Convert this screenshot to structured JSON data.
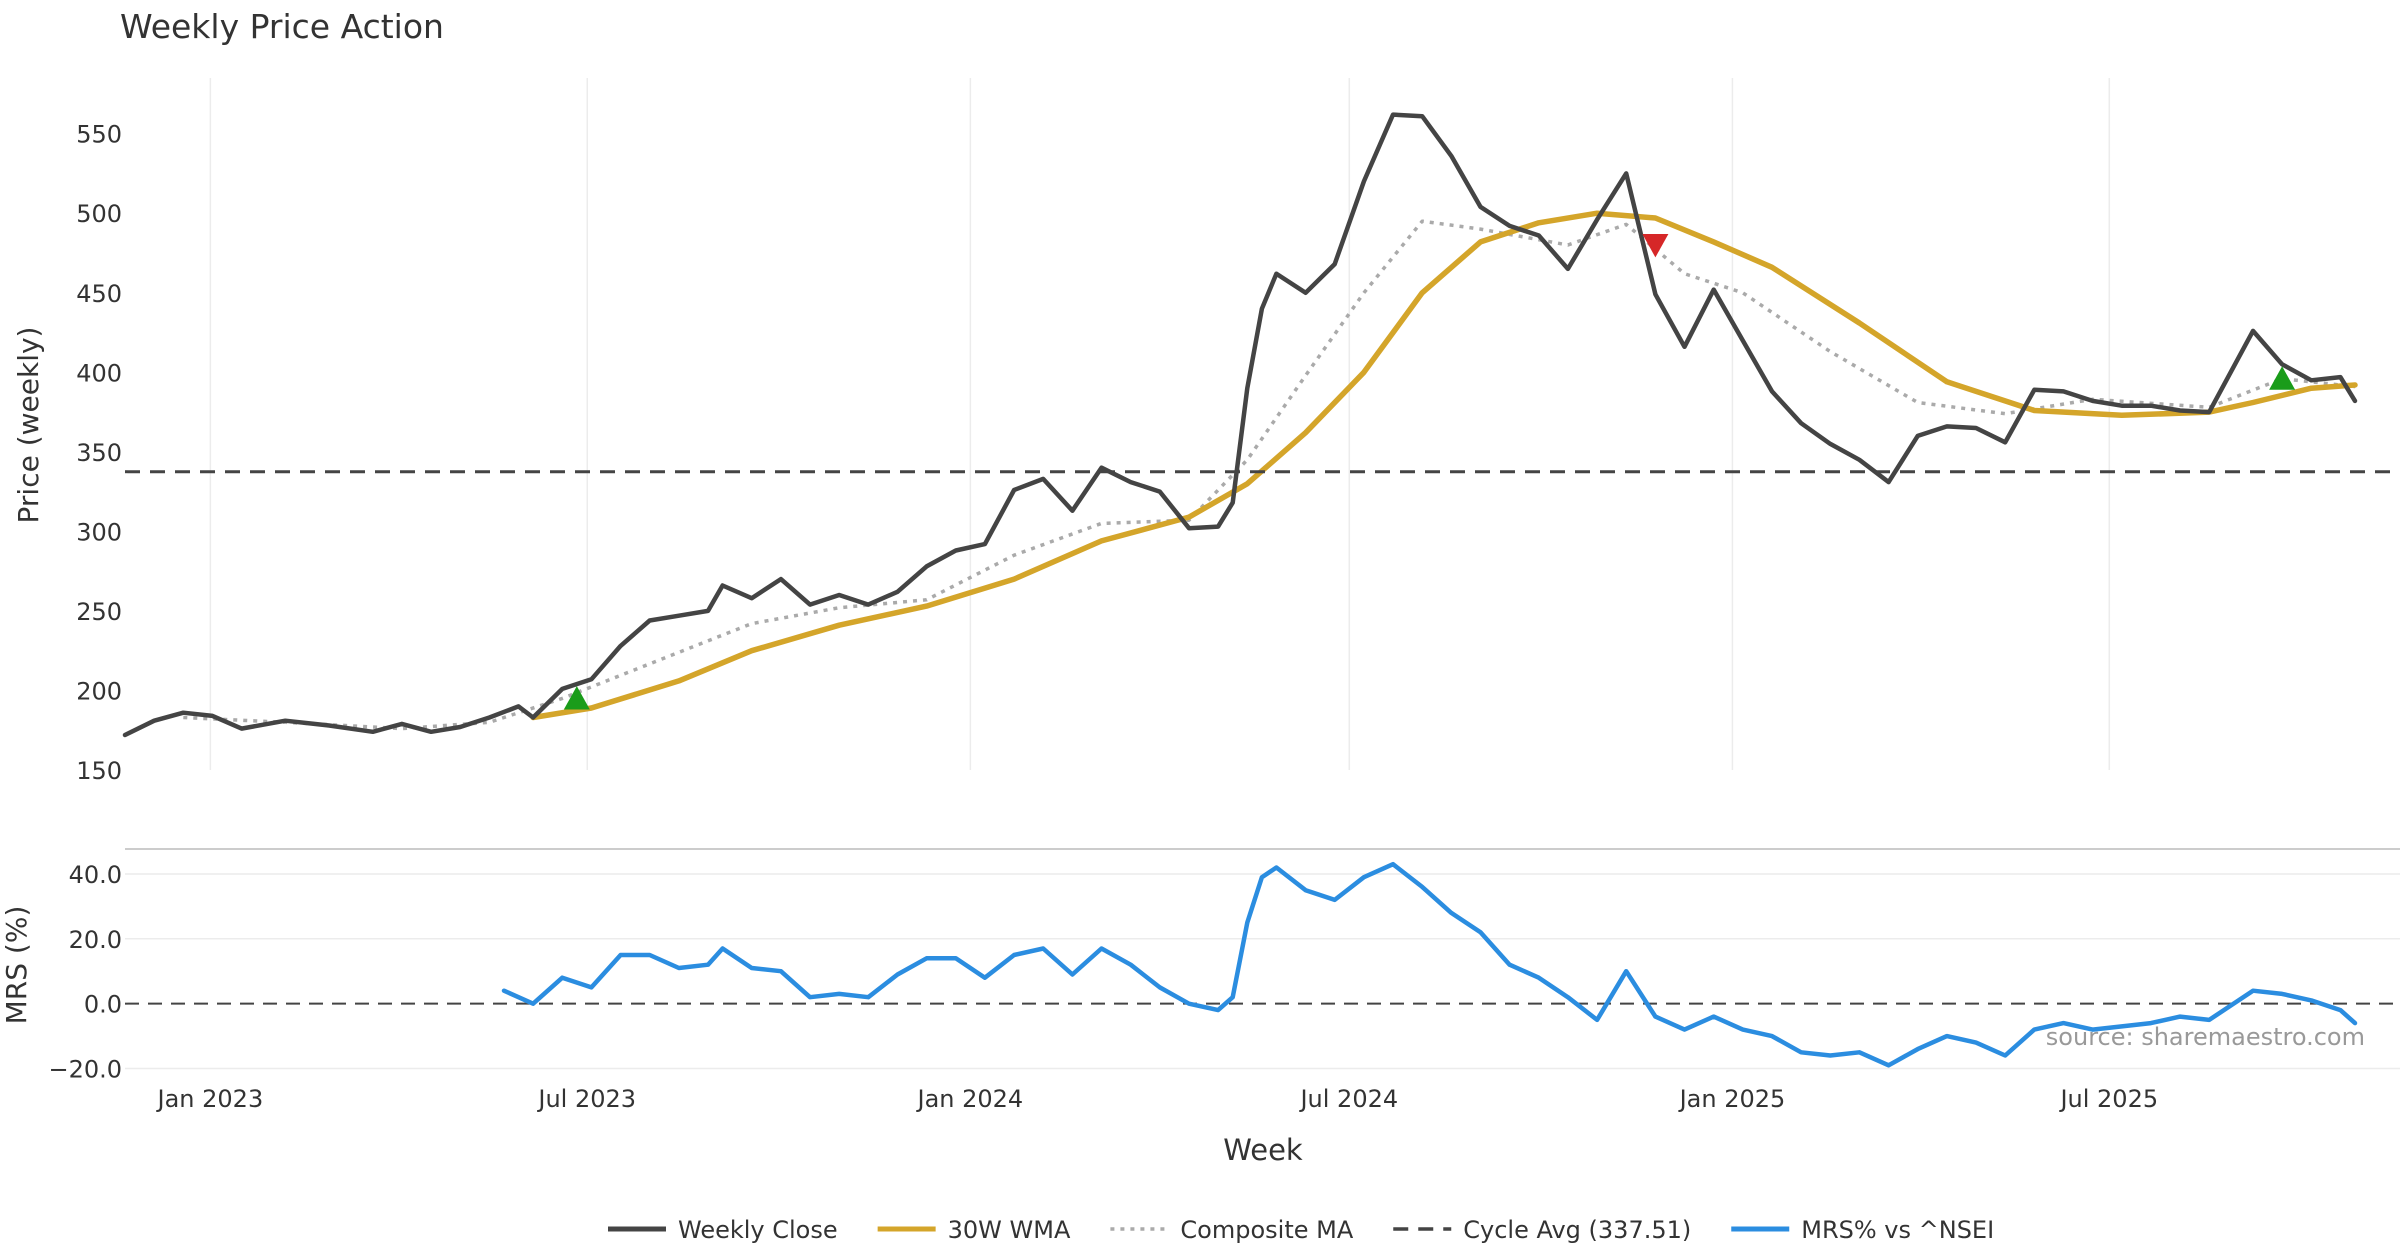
{
  "chart_data": {
    "type": "line",
    "title": "Weekly Price Action",
    "xlabel": "Week",
    "watermark": "source: sharemaestro.com",
    "x_range": [
      "2022-11-21",
      "2025-10-27"
    ],
    "x_ticks": [
      {
        "date": "2023-01-01",
        "label": "Jan 2023"
      },
      {
        "date": "2023-07-01",
        "label": "Jul 2023"
      },
      {
        "date": "2024-01-01",
        "label": "Jan 2024"
      },
      {
        "date": "2024-07-01",
        "label": "Jul 2024"
      },
      {
        "date": "2025-01-01",
        "label": "Jan 2025"
      },
      {
        "date": "2025-07-01",
        "label": "Jul 2025"
      }
    ],
    "price_panel": {
      "ylabel": "Price (weekly)",
      "ylim": [
        150,
        585
      ],
      "yticks": [
        150,
        200,
        250,
        300,
        350,
        400,
        450,
        500,
        550
      ],
      "cycle_avg": 337.51
    },
    "mrs_panel": {
      "ylabel": "MRS (%)",
      "ylim": [
        -22,
        48
      ],
      "yticks": [
        -20,
        0,
        20,
        40
      ],
      "ytick_labels": [
        "−20.0",
        "0.0",
        "20.0",
        "40.0"
      ]
    },
    "series": [
      {
        "name": "Weekly Close",
        "color": "#444444",
        "style": "solid",
        "panel": "price",
        "points": [
          [
            "2022-11-21",
            172
          ],
          [
            "2022-12-05",
            181
          ],
          [
            "2022-12-19",
            186
          ],
          [
            "2023-01-02",
            184
          ],
          [
            "2023-01-16",
            176
          ],
          [
            "2023-02-06",
            181
          ],
          [
            "2023-02-27",
            178
          ],
          [
            "2023-03-20",
            174
          ],
          [
            "2023-04-03",
            179
          ],
          [
            "2023-04-17",
            174
          ],
          [
            "2023-05-01",
            177
          ],
          [
            "2023-05-15",
            183
          ],
          [
            "2023-05-29",
            190
          ],
          [
            "2023-06-05",
            183
          ],
          [
            "2023-06-19",
            201
          ],
          [
            "2023-07-03",
            207
          ],
          [
            "2023-07-17",
            228
          ],
          [
            "2023-07-31",
            244
          ],
          [
            "2023-08-14",
            247
          ],
          [
            "2023-08-28",
            250
          ],
          [
            "2023-09-04",
            266
          ],
          [
            "2023-09-18",
            258
          ],
          [
            "2023-10-02",
            270
          ],
          [
            "2023-10-16",
            254
          ],
          [
            "2023-10-30",
            260
          ],
          [
            "2023-11-13",
            254
          ],
          [
            "2023-11-27",
            262
          ],
          [
            "2023-12-11",
            278
          ],
          [
            "2023-12-25",
            288
          ],
          [
            "2024-01-08",
            292
          ],
          [
            "2024-01-22",
            326
          ],
          [
            "2024-02-05",
            333
          ],
          [
            "2024-02-19",
            313
          ],
          [
            "2024-03-04",
            340
          ],
          [
            "2024-03-18",
            331
          ],
          [
            "2024-04-01",
            325
          ],
          [
            "2024-04-15",
            302
          ],
          [
            "2024-04-29",
            303
          ],
          [
            "2024-05-06",
            318
          ],
          [
            "2024-05-13",
            390
          ],
          [
            "2024-05-20",
            440
          ],
          [
            "2024-05-27",
            462
          ],
          [
            "2024-06-10",
            450
          ],
          [
            "2024-06-24",
            468
          ],
          [
            "2024-07-08",
            520
          ],
          [
            "2024-07-22",
            562
          ],
          [
            "2024-08-05",
            561
          ],
          [
            "2024-08-19",
            536
          ],
          [
            "2024-09-02",
            504
          ],
          [
            "2024-09-16",
            492
          ],
          [
            "2024-09-30",
            486
          ],
          [
            "2024-10-14",
            465
          ],
          [
            "2024-10-28",
            496
          ],
          [
            "2024-11-11",
            525
          ],
          [
            "2024-11-25",
            449
          ],
          [
            "2024-12-09",
            416
          ],
          [
            "2024-12-23",
            452
          ],
          [
            "2025-01-06",
            420
          ],
          [
            "2025-01-20",
            388
          ],
          [
            "2025-02-03",
            368
          ],
          [
            "2025-02-17",
            355
          ],
          [
            "2025-03-03",
            345
          ],
          [
            "2025-03-17",
            331
          ],
          [
            "2025-03-31",
            360
          ],
          [
            "2025-04-14",
            366
          ],
          [
            "2025-04-28",
            365
          ],
          [
            "2025-05-12",
            356
          ],
          [
            "2025-05-26",
            389
          ],
          [
            "2025-06-09",
            388
          ],
          [
            "2025-06-23",
            382
          ],
          [
            "2025-07-07",
            379
          ],
          [
            "2025-07-21",
            379
          ],
          [
            "2025-08-04",
            376
          ],
          [
            "2025-08-18",
            375
          ],
          [
            "2025-09-08",
            426
          ],
          [
            "2025-09-22",
            405
          ],
          [
            "2025-10-06",
            395
          ],
          [
            "2025-10-20",
            397
          ],
          [
            "2025-10-27",
            382
          ]
        ]
      },
      {
        "name": "30W WMA",
        "color": "#d4a52a",
        "style": "solid",
        "panel": "price",
        "points": [
          [
            "2023-06-05",
            183
          ],
          [
            "2023-07-03",
            189
          ],
          [
            "2023-08-14",
            206
          ],
          [
            "2023-09-18",
            225
          ],
          [
            "2023-10-30",
            241
          ],
          [
            "2023-12-11",
            253
          ],
          [
            "2024-01-22",
            270
          ],
          [
            "2024-03-04",
            294
          ],
          [
            "2024-04-15",
            309
          ],
          [
            "2024-05-13",
            330
          ],
          [
            "2024-06-10",
            362
          ],
          [
            "2024-07-08",
            400
          ],
          [
            "2024-08-05",
            450
          ],
          [
            "2024-09-02",
            482
          ],
          [
            "2024-09-30",
            494
          ],
          [
            "2024-10-28",
            500
          ],
          [
            "2024-11-25",
            497
          ],
          [
            "2024-12-23",
            482
          ],
          [
            "2025-01-20",
            466
          ],
          [
            "2025-03-03",
            431
          ],
          [
            "2025-04-14",
            394
          ],
          [
            "2025-05-26",
            376
          ],
          [
            "2025-07-07",
            373
          ],
          [
            "2025-08-18",
            375
          ],
          [
            "2025-09-08",
            381
          ],
          [
            "2025-10-06",
            390
          ],
          [
            "2025-10-27",
            392
          ]
        ]
      },
      {
        "name": "Composite MA",
        "color": "#aaaaaa",
        "style": "dotted",
        "panel": "price",
        "points": [
          [
            "2022-12-19",
            183
          ],
          [
            "2023-02-06",
            180
          ],
          [
            "2023-04-03",
            176
          ],
          [
            "2023-05-15",
            180
          ],
          [
            "2023-06-19",
            195
          ],
          [
            "2023-08-14",
            224
          ],
          [
            "2023-09-18",
            242
          ],
          [
            "2023-10-30",
            252
          ],
          [
            "2023-12-11",
            257
          ],
          [
            "2024-01-22",
            285
          ],
          [
            "2024-03-04",
            305
          ],
          [
            "2024-04-15",
            307
          ],
          [
            "2024-05-13",
            345
          ],
          [
            "2024-06-10",
            398
          ],
          [
            "2024-07-08",
            450
          ],
          [
            "2024-08-05",
            495
          ],
          [
            "2024-09-02",
            490
          ],
          [
            "2024-10-14",
            480
          ],
          [
            "2024-11-11",
            493
          ],
          [
            "2024-12-09",
            462
          ],
          [
            "2025-01-06",
            450
          ],
          [
            "2025-02-17",
            413
          ],
          [
            "2025-03-31",
            381
          ],
          [
            "2025-05-12",
            374
          ],
          [
            "2025-06-23",
            383
          ],
          [
            "2025-08-18",
            378
          ],
          [
            "2025-09-22",
            396
          ],
          [
            "2025-10-27",
            391
          ]
        ]
      },
      {
        "name": "Cycle Avg (337.51)",
        "color": "#444444",
        "style": "dashed",
        "panel": "price",
        "points": [
          [
            "2022-11-21",
            337.51
          ],
          [
            "2025-11-10",
            337.51
          ]
        ]
      },
      {
        "name": "MRS% vs ^NSEI",
        "color": "#2b8de0",
        "style": "solid",
        "panel": "mrs",
        "points": [
          [
            "2023-05-22",
            4
          ],
          [
            "2023-06-05",
            0
          ],
          [
            "2023-06-19",
            8
          ],
          [
            "2023-07-03",
            5
          ],
          [
            "2023-07-17",
            15
          ],
          [
            "2023-07-31",
            15
          ],
          [
            "2023-08-14",
            11
          ],
          [
            "2023-08-28",
            12
          ],
          [
            "2023-09-04",
            17
          ],
          [
            "2023-09-18",
            11
          ],
          [
            "2023-10-02",
            10
          ],
          [
            "2023-10-16",
            2
          ],
          [
            "2023-10-30",
            3
          ],
          [
            "2023-11-13",
            2
          ],
          [
            "2023-11-27",
            9
          ],
          [
            "2023-12-11",
            14
          ],
          [
            "2023-12-25",
            14
          ],
          [
            "2024-01-08",
            8
          ],
          [
            "2024-01-22",
            15
          ],
          [
            "2024-02-05",
            17
          ],
          [
            "2024-02-19",
            9
          ],
          [
            "2024-03-04",
            17
          ],
          [
            "2024-03-18",
            12
          ],
          [
            "2024-04-01",
            5
          ],
          [
            "2024-04-15",
            0
          ],
          [
            "2024-04-29",
            -2
          ],
          [
            "2024-05-06",
            2
          ],
          [
            "2024-05-13",
            25
          ],
          [
            "2024-05-20",
            39
          ],
          [
            "2024-05-27",
            42
          ],
          [
            "2024-06-10",
            35
          ],
          [
            "2024-06-24",
            32
          ],
          [
            "2024-07-08",
            39
          ],
          [
            "2024-07-22",
            43
          ],
          [
            "2024-08-05",
            36
          ],
          [
            "2024-08-19",
            28
          ],
          [
            "2024-09-02",
            22
          ],
          [
            "2024-09-16",
            12
          ],
          [
            "2024-09-30",
            8
          ],
          [
            "2024-10-14",
            2
          ],
          [
            "2024-10-28",
            -5
          ],
          [
            "2024-11-11",
            10
          ],
          [
            "2024-11-25",
            -4
          ],
          [
            "2024-12-09",
            -8
          ],
          [
            "2024-12-23",
            -4
          ],
          [
            "2025-01-06",
            -8
          ],
          [
            "2025-01-20",
            -10
          ],
          [
            "2025-02-03",
            -15
          ],
          [
            "2025-02-17",
            -16
          ],
          [
            "2025-03-03",
            -15
          ],
          [
            "2025-03-17",
            -19
          ],
          [
            "2025-03-31",
            -14
          ],
          [
            "2025-04-14",
            -10
          ],
          [
            "2025-04-28",
            -12
          ],
          [
            "2025-05-12",
            -16
          ],
          [
            "2025-05-26",
            -8
          ],
          [
            "2025-06-09",
            -6
          ],
          [
            "2025-06-23",
            -8
          ],
          [
            "2025-07-07",
            -7
          ],
          [
            "2025-07-21",
            -6
          ],
          [
            "2025-08-04",
            -4
          ],
          [
            "2025-08-18",
            -5
          ],
          [
            "2025-09-08",
            4
          ],
          [
            "2025-09-22",
            3
          ],
          [
            "2025-10-06",
            1
          ],
          [
            "2025-10-20",
            -2
          ],
          [
            "2025-10-27",
            -6
          ]
        ]
      }
    ],
    "markers": [
      {
        "type": "buy",
        "date": "2023-06-26",
        "value": 195,
        "color": "#1a9c1a"
      },
      {
        "type": "sell",
        "date": "2024-11-25",
        "value": 480,
        "color": "#d62728"
      },
      {
        "type": "buy",
        "date": "2025-09-22",
        "value": 396,
        "color": "#1a9c1a"
      }
    ],
    "legend": {
      "placement": "bottom-center",
      "entries": [
        {
          "label": "Weekly Close",
          "color": "#444444",
          "style": "solid"
        },
        {
          "label": "30W WMA",
          "color": "#d4a52a",
          "style": "solid"
        },
        {
          "label": "Composite MA",
          "color": "#aaaaaa",
          "style": "dotted"
        },
        {
          "label": "Cycle Avg (337.51)",
          "color": "#444444",
          "style": "dashed"
        },
        {
          "label": "MRS% vs ^NSEI",
          "color": "#2b8de0",
          "style": "solid"
        }
      ]
    }
  }
}
